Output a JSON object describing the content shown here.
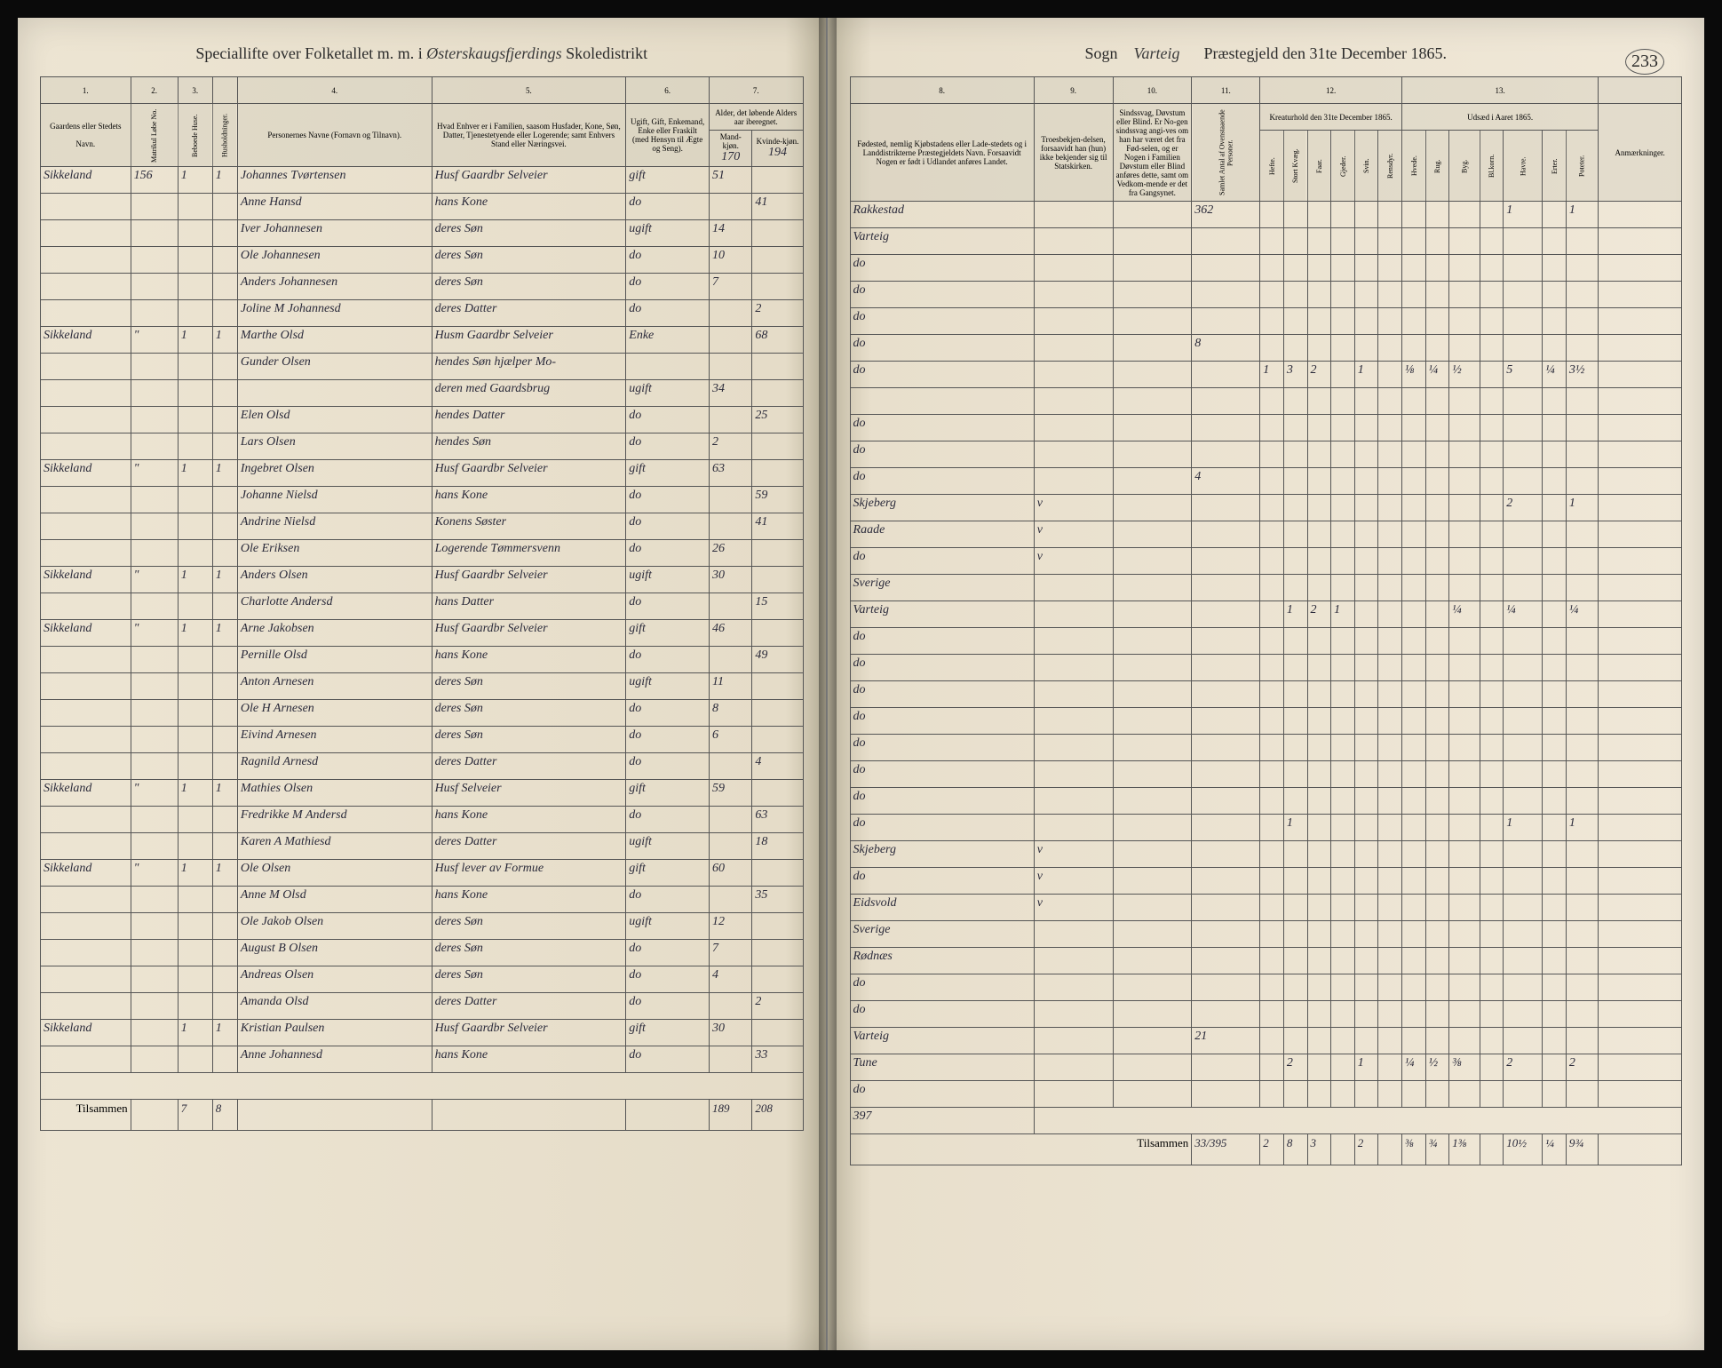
{
  "page_number": "233",
  "header_left": {
    "prefix": "Speciallifte over Folketallet m. m. i",
    "district": "Østerskaugsfjerdings",
    "suffix": "Skoledistrikt"
  },
  "header_right": {
    "sogn_label": "Sogn",
    "sogn_value": "Varteig",
    "prest_label": "Præstegjeld den 31te December 1865."
  },
  "left_columns": {
    "nums": [
      "1.",
      "2.",
      "3.",
      "4.",
      "5.",
      "6.",
      "7."
    ],
    "h1": "Gaardens eller Stedets",
    "h1_sub": "Navn.",
    "h2": "Matrikul Løbe No.",
    "h3": "Beboede Huse.",
    "h4": "Husholdninger.",
    "h5": "Personernes Navne (Fornavn og Tilnavn).",
    "h6": "Hvad Enhver er i Familien, saasom Husfader, Kone, Søn, Datter, Tjenestetyende eller Logerende; samt Enhvers Stand eller Næringsvei.",
    "h7": "Ugift, Gift, Enkemand, Enke eller Fraskilt (med Hensyn til Ægte og Seng).",
    "h8": "Alder, det løbende Alders aar iberegnet.",
    "h8_m": "Mand-kjøn.",
    "h8_k": "Kvinde-kjøn."
  },
  "right_columns": {
    "nums": [
      "8.",
      "9.",
      "10.",
      "11.",
      "12.",
      "13."
    ],
    "h8": "Fødested, nemlig Kjøbstadens eller Lade-stedets og i Landdistrikterne Præstegjeldets Navn. Forsaavidt Nogen er født i Udlandet anføres Landet.",
    "h9": "Troesbekjen-delsen, forsaavidt han (hun) ikke bekjender sig til Statskirken.",
    "h10": "Sindssvag, Døvstum eller Blind. Er No-gen sindssvag angi-ves om han har været det fra Fød-selen, og er Nogen i Familien Døvstum eller Blind anføres dette, samt om Vedkom-mende er det fra Gangsynet.",
    "h11": "Samlet Antal af Ovenstaaende Personer.",
    "h12_title": "Kreaturhold den 31te December 1865.",
    "h12_cols": [
      "Hefte.",
      "Stort Kvæg.",
      "Faar.",
      "Gjeder.",
      "Svin.",
      "Rensdyr."
    ],
    "h13_title": "Udsæd i Aaret 1865.",
    "h13_cols": [
      "Hvede.",
      "Rug.",
      "Byg.",
      "Bl.korn.",
      "Havre.",
      "Erter.",
      "Poteter."
    ],
    "h_anm": "Anmærkninger."
  },
  "left_header_totals": {
    "m": "170",
    "k": "194"
  },
  "rows": [
    {
      "gaard": "Sikkeland",
      "no": "156",
      "hus": "1",
      "hush": "1",
      "navn": "Johannes Tvørtensen",
      "fam": "Husf Gaardbr Selveier",
      "status": "gift",
      "m": "51",
      "k": "",
      "fsted": "Rakkestad",
      "bek": "",
      "sind": "",
      "ant": "362",
      "kreatur": [
        "",
        "",
        "",
        "",
        "",
        ""
      ],
      "udsad": [
        "",
        "",
        "",
        "",
        "1",
        "",
        "1"
      ]
    },
    {
      "gaard": "",
      "no": "",
      "hus": "",
      "hush": "",
      "navn": "Anne Hansd",
      "fam": "hans Kone",
      "status": "do",
      "m": "",
      "k": "41",
      "fsted": "Varteig",
      "bek": "",
      "sind": "",
      "ant": "",
      "kreatur": [
        "",
        "",
        "",
        "",
        "",
        ""
      ],
      "udsad": [
        "",
        "",
        "",
        "",
        "",
        "",
        ""
      ]
    },
    {
      "gaard": "",
      "no": "",
      "hus": "",
      "hush": "",
      "navn": "Iver Johannesen",
      "fam": "deres Søn",
      "status": "ugift",
      "m": "14",
      "k": "",
      "fsted": "do",
      "bek": "",
      "sind": "",
      "ant": "",
      "kreatur": [
        "",
        "",
        "",
        "",
        "",
        ""
      ],
      "udsad": [
        "",
        "",
        "",
        "",
        "",
        "",
        ""
      ]
    },
    {
      "gaard": "",
      "no": "",
      "hus": "",
      "hush": "",
      "navn": "Ole Johannesen",
      "fam": "deres Søn",
      "status": "do",
      "m": "10",
      "k": "",
      "fsted": "do",
      "bek": "",
      "sind": "",
      "ant": "",
      "kreatur": [
        "",
        "",
        "",
        "",
        "",
        ""
      ],
      "udsad": [
        "",
        "",
        "",
        "",
        "",
        "",
        ""
      ]
    },
    {
      "gaard": "",
      "no": "",
      "hus": "",
      "hush": "",
      "navn": "Anders Johannesen",
      "fam": "deres Søn",
      "status": "do",
      "m": "7",
      "k": "",
      "fsted": "do",
      "bek": "",
      "sind": "",
      "ant": "",
      "kreatur": [
        "",
        "",
        "",
        "",
        "",
        ""
      ],
      "udsad": [
        "",
        "",
        "",
        "",
        "",
        "",
        ""
      ]
    },
    {
      "gaard": "",
      "no": "",
      "hus": "",
      "hush": "",
      "navn": "Joline M Johannesd",
      "fam": "deres Datter",
      "status": "do",
      "m": "",
      "k": "2",
      "fsted": "do",
      "bek": "",
      "sind": "",
      "ant": "8",
      "kreatur": [
        "",
        "",
        "",
        "",
        "",
        ""
      ],
      "udsad": [
        "",
        "",
        "",
        "",
        "",
        "",
        ""
      ]
    },
    {
      "gaard": "Sikkeland",
      "no": "\"",
      "hus": "1",
      "hush": "1",
      "navn": "Marthe Olsd",
      "fam": "Husm Gaardbr Selveier",
      "status": "Enke",
      "m": "",
      "k": "68",
      "fsted": "do",
      "bek": "",
      "sind": "",
      "ant": "",
      "kreatur": [
        "1",
        "3",
        "2",
        "",
        "1",
        ""
      ],
      "udsad": [
        "⅛",
        "¼",
        "½",
        "",
        "5",
        "¼",
        "3½"
      ]
    },
    {
      "gaard": "",
      "no": "",
      "hus": "",
      "hush": "",
      "navn": "Gunder Olsen",
      "fam": "hendes Søn hjælper Mo-",
      "status": "",
      "m": "",
      "k": "",
      "fsted": "",
      "bek": "",
      "sind": "",
      "ant": "",
      "kreatur": [
        "",
        "",
        "",
        "",
        "",
        ""
      ],
      "udsad": [
        "",
        "",
        "",
        "",
        "",
        "",
        ""
      ]
    },
    {
      "gaard": "",
      "no": "",
      "hus": "",
      "hush": "",
      "navn": "",
      "fam": "deren med Gaardsbrug",
      "status": "ugift",
      "m": "34",
      "k": "",
      "fsted": "do",
      "bek": "",
      "sind": "",
      "ant": "",
      "kreatur": [
        "",
        "",
        "",
        "",
        "",
        ""
      ],
      "udsad": [
        "",
        "",
        "",
        "",
        "",
        "",
        ""
      ]
    },
    {
      "gaard": "",
      "no": "",
      "hus": "",
      "hush": "",
      "navn": "Elen Olsd",
      "fam": "hendes Datter",
      "status": "do",
      "m": "",
      "k": "25",
      "fsted": "do",
      "bek": "",
      "sind": "",
      "ant": "",
      "kreatur": [
        "",
        "",
        "",
        "",
        "",
        ""
      ],
      "udsad": [
        "",
        "",
        "",
        "",
        "",
        "",
        ""
      ]
    },
    {
      "gaard": "",
      "no": "",
      "hus": "",
      "hush": "",
      "navn": "Lars Olsen",
      "fam": "hendes Søn",
      "status": "do",
      "m": "2",
      "k": "",
      "fsted": "do",
      "bek": "",
      "sind": "",
      "ant": "4",
      "kreatur": [
        "",
        "",
        "",
        "",
        "",
        ""
      ],
      "udsad": [
        "",
        "",
        "",
        "",
        "",
        "",
        ""
      ]
    },
    {
      "gaard": "Sikkeland",
      "no": "\"",
      "hus": "1",
      "hush": "1",
      "navn": "Ingebret Olsen",
      "fam": "Husf Gaardbr Selveier",
      "status": "gift",
      "m": "63",
      "k": "",
      "fsted": "Skjeberg",
      "bek": "v",
      "sind": "",
      "ant": "",
      "kreatur": [
        "",
        "",
        "",
        "",
        "",
        ""
      ],
      "udsad": [
        "",
        "",
        "",
        "",
        "2",
        "",
        "1"
      ]
    },
    {
      "gaard": "",
      "no": "",
      "hus": "",
      "hush": "",
      "navn": "Johanne Nielsd",
      "fam": "hans Kone",
      "status": "do",
      "m": "",
      "k": "59",
      "fsted": "Raade",
      "bek": "v",
      "sind": "",
      "ant": "",
      "kreatur": [
        "",
        "",
        "",
        "",
        "",
        ""
      ],
      "udsad": [
        "",
        "",
        "",
        "",
        "",
        "",
        ""
      ]
    },
    {
      "gaard": "",
      "no": "",
      "hus": "",
      "hush": "",
      "navn": "Andrine Nielsd",
      "fam": "Konens Søster",
      "status": "do",
      "m": "",
      "k": "41",
      "fsted": "do",
      "bek": "v",
      "sind": "",
      "ant": "",
      "kreatur": [
        "",
        "",
        "",
        "",
        "",
        ""
      ],
      "udsad": [
        "",
        "",
        "",
        "",
        "",
        "",
        ""
      ]
    },
    {
      "gaard": "",
      "no": "",
      "hus": "",
      "hush": "",
      "navn": "Ole Eriksen",
      "fam": "Logerende Tømmersvenn",
      "status": "do",
      "m": "26",
      "k": "",
      "fsted": "Sverige",
      "bek": "",
      "sind": "",
      "ant": "",
      "kreatur": [
        "",
        "",
        "",
        "",
        "",
        ""
      ],
      "udsad": [
        "",
        "",
        "",
        "",
        "",
        "",
        ""
      ]
    },
    {
      "gaard": "Sikkeland",
      "no": "\"",
      "hus": "1",
      "hush": "1",
      "navn": "Anders Olsen",
      "fam": "Husf Gaardbr Selveier",
      "status": "ugift",
      "m": "30",
      "k": "",
      "fsted": "Varteig",
      "bek": "",
      "sind": "",
      "ant": "",
      "kreatur": [
        "",
        "1",
        "2",
        "1",
        "",
        ""
      ],
      "udsad": [
        "",
        "",
        "¼",
        "",
        "¼",
        "",
        "¼"
      ]
    },
    {
      "gaard": "",
      "no": "",
      "hus": "",
      "hush": "",
      "navn": "Charlotte Andersd",
      "fam": "hans Datter",
      "status": "do",
      "m": "",
      "k": "15",
      "fsted": "do",
      "bek": "",
      "sind": "",
      "ant": "",
      "kreatur": [
        "",
        "",
        "",
        "",
        "",
        ""
      ],
      "udsad": [
        "",
        "",
        "",
        "",
        "",
        "",
        ""
      ]
    },
    {
      "gaard": "Sikkeland",
      "no": "\"",
      "hus": "1",
      "hush": "1",
      "navn": "Arne Jakobsen",
      "fam": "Husf Gaardbr Selveier",
      "status": "gift",
      "m": "46",
      "k": "",
      "fsted": "do",
      "bek": "",
      "sind": "",
      "ant": "",
      "kreatur": [
        "",
        "",
        "",
        "",
        "",
        ""
      ],
      "udsad": [
        "",
        "",
        "",
        "",
        "",
        "",
        ""
      ]
    },
    {
      "gaard": "",
      "no": "",
      "hus": "",
      "hush": "",
      "navn": "Pernille Olsd",
      "fam": "hans Kone",
      "status": "do",
      "m": "",
      "k": "49",
      "fsted": "do",
      "bek": "",
      "sind": "",
      "ant": "",
      "kreatur": [
        "",
        "",
        "",
        "",
        "",
        ""
      ],
      "udsad": [
        "",
        "",
        "",
        "",
        "",
        "",
        ""
      ]
    },
    {
      "gaard": "",
      "no": "",
      "hus": "",
      "hush": "",
      "navn": "Anton Arnesen",
      "fam": "deres Søn",
      "status": "ugift",
      "m": "11",
      "k": "",
      "fsted": "do",
      "bek": "",
      "sind": "",
      "ant": "",
      "kreatur": [
        "",
        "",
        "",
        "",
        "",
        ""
      ],
      "udsad": [
        "",
        "",
        "",
        "",
        "",
        "",
        ""
      ]
    },
    {
      "gaard": "",
      "no": "",
      "hus": "",
      "hush": "",
      "navn": "Ole H Arnesen",
      "fam": "deres Søn",
      "status": "do",
      "m": "8",
      "k": "",
      "fsted": "do",
      "bek": "",
      "sind": "",
      "ant": "",
      "kreatur": [
        "",
        "",
        "",
        "",
        "",
        ""
      ],
      "udsad": [
        "",
        "",
        "",
        "",
        "",
        "",
        ""
      ]
    },
    {
      "gaard": "",
      "no": "",
      "hus": "",
      "hush": "",
      "navn": "Eivind Arnesen",
      "fam": "deres Søn",
      "status": "do",
      "m": "6",
      "k": "",
      "fsted": "do",
      "bek": "",
      "sind": "",
      "ant": "",
      "kreatur": [
        "",
        "",
        "",
        "",
        "",
        ""
      ],
      "udsad": [
        "",
        "",
        "",
        "",
        "",
        "",
        ""
      ]
    },
    {
      "gaard": "",
      "no": "",
      "hus": "",
      "hush": "",
      "navn": "Ragnild Arnesd",
      "fam": "deres Datter",
      "status": "do",
      "m": "",
      "k": "4",
      "fsted": "do",
      "bek": "",
      "sind": "",
      "ant": "",
      "kreatur": [
        "",
        "",
        "",
        "",
        "",
        ""
      ],
      "udsad": [
        "",
        "",
        "",
        "",
        "",
        "",
        ""
      ]
    },
    {
      "gaard": "Sikkeland",
      "no": "\"",
      "hus": "1",
      "hush": "1",
      "navn": "Mathies Olsen",
      "fam": "Husf Selveier",
      "status": "gift",
      "m": "59",
      "k": "",
      "fsted": "do",
      "bek": "",
      "sind": "",
      "ant": "",
      "kreatur": [
        "",
        "1",
        "",
        "",
        "",
        ""
      ],
      "udsad": [
        "",
        "",
        "",
        "",
        "1",
        "",
        "1"
      ]
    },
    {
      "gaard": "",
      "no": "",
      "hus": "",
      "hush": "",
      "navn": "Fredrikke M Andersd",
      "fam": "hans Kone",
      "status": "do",
      "m": "",
      "k": "63",
      "fsted": "Skjeberg",
      "bek": "v",
      "sind": "",
      "ant": "",
      "kreatur": [
        "",
        "",
        "",
        "",
        "",
        ""
      ],
      "udsad": [
        "",
        "",
        "",
        "",
        "",
        "",
        ""
      ]
    },
    {
      "gaard": "",
      "no": "",
      "hus": "",
      "hush": "",
      "navn": "Karen A Mathiesd",
      "fam": "deres Datter",
      "status": "ugift",
      "m": "",
      "k": "18",
      "fsted": "do",
      "bek": "v",
      "sind": "",
      "ant": "",
      "kreatur": [
        "",
        "",
        "",
        "",
        "",
        ""
      ],
      "udsad": [
        "",
        "",
        "",
        "",
        "",
        "",
        ""
      ]
    },
    {
      "gaard": "Sikkeland",
      "no": "\"",
      "hus": "1",
      "hush": "1",
      "navn": "Ole Olsen",
      "fam": "Husf lever av Formue",
      "status": "gift",
      "m": "60",
      "k": "",
      "fsted": "Eidsvold",
      "bek": "v",
      "sind": "",
      "ant": "",
      "kreatur": [
        "",
        "",
        "",
        "",
        "",
        ""
      ],
      "udsad": [
        "",
        "",
        "",
        "",
        "",
        "",
        ""
      ]
    },
    {
      "gaard": "",
      "no": "",
      "hus": "",
      "hush": "",
      "navn": "Anne M Olsd",
      "fam": "hans Kone",
      "status": "do",
      "m": "",
      "k": "35",
      "fsted": "Sverige",
      "bek": "",
      "sind": "",
      "ant": "",
      "kreatur": [
        "",
        "",
        "",
        "",
        "",
        ""
      ],
      "udsad": [
        "",
        "",
        "",
        "",
        "",
        "",
        ""
      ]
    },
    {
      "gaard": "",
      "no": "",
      "hus": "",
      "hush": "",
      "navn": "Ole Jakob Olsen",
      "fam": "deres Søn",
      "status": "ugift",
      "m": "12",
      "k": "",
      "fsted": "Rødnæs",
      "bek": "",
      "sind": "",
      "ant": "",
      "kreatur": [
        "",
        "",
        "",
        "",
        "",
        ""
      ],
      "udsad": [
        "",
        "",
        "",
        "",
        "",
        "",
        ""
      ]
    },
    {
      "gaard": "",
      "no": "",
      "hus": "",
      "hush": "",
      "navn": "August B Olsen",
      "fam": "deres Søn",
      "status": "do",
      "m": "7",
      "k": "",
      "fsted": "do",
      "bek": "",
      "sind": "",
      "ant": "",
      "kreatur": [
        "",
        "",
        "",
        "",
        "",
        ""
      ],
      "udsad": [
        "",
        "",
        "",
        "",
        "",
        "",
        ""
      ]
    },
    {
      "gaard": "",
      "no": "",
      "hus": "",
      "hush": "",
      "navn": "Andreas Olsen",
      "fam": "deres Søn",
      "status": "do",
      "m": "4",
      "k": "",
      "fsted": "do",
      "bek": "",
      "sind": "",
      "ant": "",
      "kreatur": [
        "",
        "",
        "",
        "",
        "",
        ""
      ],
      "udsad": [
        "",
        "",
        "",
        "",
        "",
        "",
        ""
      ]
    },
    {
      "gaard": "",
      "no": "",
      "hus": "",
      "hush": "",
      "navn": "Amanda Olsd",
      "fam": "deres Datter",
      "status": "do",
      "m": "",
      "k": "2",
      "fsted": "Varteig",
      "bek": "",
      "sind": "",
      "ant": "21",
      "kreatur": [
        "",
        "",
        "",
        "",
        "",
        ""
      ],
      "udsad": [
        "",
        "",
        "",
        "",
        "",
        "",
        ""
      ]
    },
    {
      "gaard": "Sikkeland",
      "no": "",
      "hus": "1",
      "hush": "1",
      "navn": "Kristian Paulsen",
      "fam": "Husf Gaardbr Selveier",
      "status": "gift",
      "m": "30",
      "k": "",
      "fsted": "Tune",
      "bek": "",
      "sind": "",
      "ant": "",
      "kreatur": [
        "",
        "2",
        "",
        "",
        "1",
        ""
      ],
      "udsad": [
        "¼",
        "½",
        "⅜",
        "",
        "2",
        "",
        "2"
      ]
    },
    {
      "gaard": "",
      "no": "",
      "hus": "",
      "hush": "",
      "navn": "Anne Johannesd",
      "fam": "hans Kone",
      "status": "do",
      "m": "",
      "k": "33",
      "fsted": "do",
      "bek": "",
      "sind": "",
      "ant": "",
      "kreatur": [
        "",
        "",
        "",
        "",
        "",
        ""
      ],
      "udsad": [
        "",
        "",
        "",
        "",
        "",
        "",
        ""
      ]
    }
  ],
  "left_footer": {
    "label": "Tilsammen",
    "hus": "7",
    "hush": "8",
    "m": "189",
    "k": "208"
  },
  "right_footer": {
    "count": "397",
    "label": "Tilsammen",
    "ant": "33/395",
    "kreatur": [
      "2",
      "8",
      "3",
      "",
      "2",
      ""
    ],
    "udsad": [
      "⅜",
      "¾",
      "1⅜",
      "",
      "10½",
      "¼",
      "9¾"
    ]
  }
}
